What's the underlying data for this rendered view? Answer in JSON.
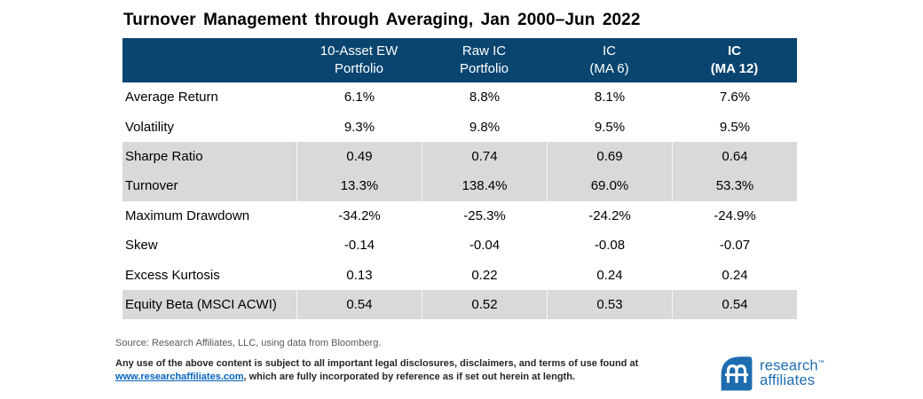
{
  "title": "Turnover Management through Averaging, Jan 2000–Jun 2022",
  "colors": {
    "header_bg": "#0a4570",
    "row_shade": "#d9d9d9",
    "link_blue": "#0563c1",
    "logo_blue": "#1e6cb0"
  },
  "chart_data": {
    "type": "table",
    "title": "Turnover Management through Averaging, Jan 2000–Jun 2022",
    "columns": [
      {
        "label": "10-Asset EW\nPortfolio",
        "bold": false
      },
      {
        "label": "Raw IC\nPortfolio",
        "bold": false
      },
      {
        "label": "IC\n(MA 6)",
        "bold": false
      },
      {
        "label": "IC\n(MA 12)",
        "bold": true
      }
    ],
    "rows": [
      {
        "label": "Average Return",
        "values": [
          "6.1%",
          "8.8%",
          "8.1%",
          "7.6%"
        ],
        "shaded": false
      },
      {
        "label": "Volatility",
        "values": [
          "9.3%",
          "9.8%",
          "9.5%",
          "9.5%"
        ],
        "shaded": false
      },
      {
        "label": "Sharpe Ratio",
        "values": [
          "0.49",
          "0.74",
          "0.69",
          "0.64"
        ],
        "shaded": true
      },
      {
        "label": "Turnover",
        "values": [
          "13.3%",
          "138.4%",
          "69.0%",
          "53.3%"
        ],
        "shaded": true
      },
      {
        "label": "Maximum Drawdown",
        "values": [
          "-34.2%",
          "-25.3%",
          "-24.2%",
          "-24.9%"
        ],
        "shaded": false
      },
      {
        "label": "Skew",
        "values": [
          "-0.14",
          "-0.04",
          "-0.08",
          "-0.07"
        ],
        "shaded": false
      },
      {
        "label": "Excess Kurtosis",
        "values": [
          "0.13",
          "0.22",
          "0.24",
          "0.24"
        ],
        "shaded": false
      },
      {
        "label": "Equity Beta (MSCI ACWI)",
        "values": [
          "0.54",
          "0.52",
          "0.53",
          "0.54"
        ],
        "shaded": true
      }
    ]
  },
  "footer": {
    "source": "Source: Research Affiliates, LLC, using data from Bloomberg.",
    "legal_line1": "Any use of the above content is subject to all important legal disclosures, disclaimers, and terms of use found at",
    "legal_link": "www.researchaffiliates.com",
    "legal_line2_after": ", which are fully incorporated by reference as if set out herein at length."
  },
  "logo": {
    "line1": "research",
    "tm": "™",
    "line2": "affiliates"
  }
}
